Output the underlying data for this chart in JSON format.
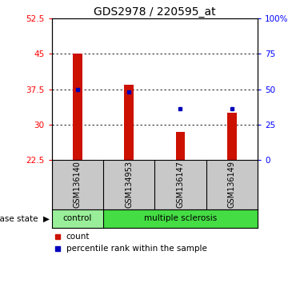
{
  "title": "GDS2978 / 220595_at",
  "samples": [
    "GSM136140",
    "GSM134953",
    "GSM136147",
    "GSM136149"
  ],
  "bar_values": [
    45.0,
    38.5,
    28.5,
    32.5
  ],
  "percentile_values": [
    50.0,
    48.0,
    36.0,
    36.0
  ],
  "bar_color": "#cc1100",
  "percentile_color": "#0000bb",
  "ylim_left": [
    22.5,
    52.5
  ],
  "ylim_right": [
    0,
    100
  ],
  "left_ticks": [
    22.5,
    30.0,
    37.5,
    45.0,
    52.5
  ],
  "right_ticks": [
    0,
    25,
    50,
    75,
    100
  ],
  "right_tick_labels": [
    "0",
    "25",
    "50",
    "75",
    "100%"
  ],
  "grid_lines": [
    30.0,
    37.5,
    45.0
  ],
  "groups": [
    {
      "label": "control",
      "n": 1,
      "color": "#99ee99"
    },
    {
      "label": "multiple sclerosis",
      "n": 3,
      "color": "#44dd44"
    }
  ],
  "legend_count_label": "count",
  "legend_pct_label": "percentile rank within the sample",
  "bar_width": 0.18,
  "label_area_color": "#c8c8c8",
  "background_color": "#ffffff"
}
